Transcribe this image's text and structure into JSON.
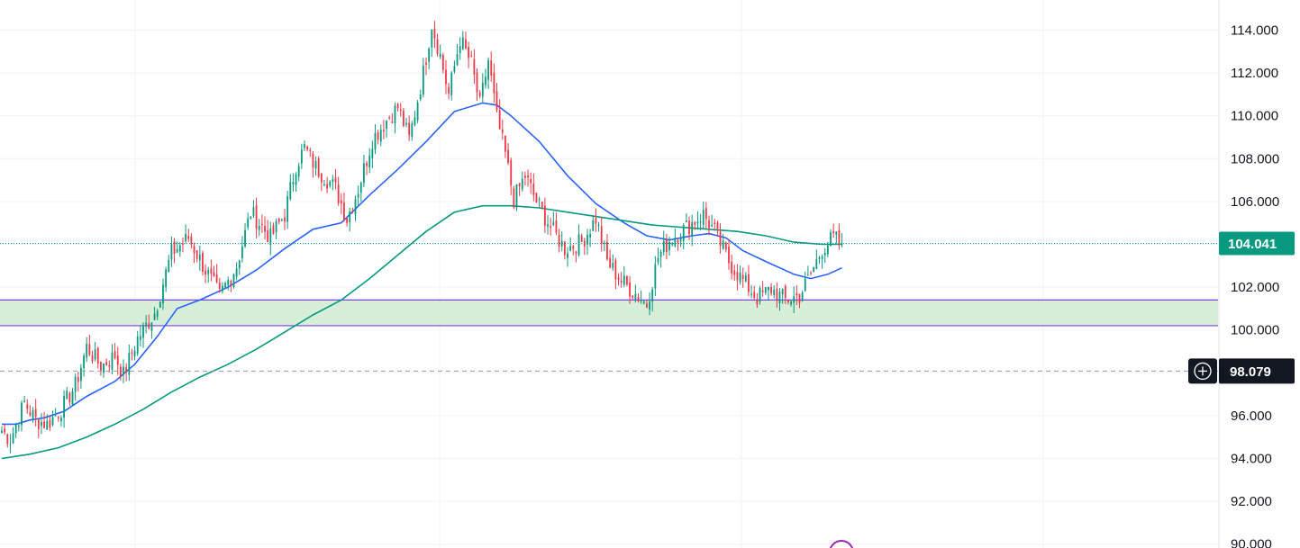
{
  "chart_data": {
    "type": "candlestick",
    "title": "",
    "xlabel": "",
    "ylabel": "",
    "ylim": [
      89.8,
      115.5
    ],
    "grid": true,
    "y_ticks": [
      {
        "value": 114,
        "label": "114.000"
      },
      {
        "value": 112,
        "label": "112.000"
      },
      {
        "value": 110,
        "label": "110.000"
      },
      {
        "value": 108,
        "label": "108.000"
      },
      {
        "value": 106,
        "label": "106.000"
      },
      {
        "value": 102,
        "label": "102.000"
      },
      {
        "value": 100,
        "label": "100.000"
      },
      {
        "value": 96,
        "label": "96.000"
      },
      {
        "value": 94,
        "label": "94.000"
      },
      {
        "value": 92,
        "label": "92.000"
      },
      {
        "value": 90,
        "label": "90.000"
      }
    ],
    "price_anchors": [
      {
        "t": 0,
        "p": 95.3
      },
      {
        "t": 3,
        "p": 94.9
      },
      {
        "t": 8,
        "p": 96.6
      },
      {
        "t": 12,
        "p": 95.8
      },
      {
        "t": 16,
        "p": 95.6
      },
      {
        "t": 21,
        "p": 96.3
      },
      {
        "t": 26,
        "p": 97.4
      },
      {
        "t": 30,
        "p": 99.2
      },
      {
        "t": 35,
        "p": 98.3
      },
      {
        "t": 40,
        "p": 98.8
      },
      {
        "t": 43,
        "p": 97.9
      },
      {
        "t": 48,
        "p": 99.6
      },
      {
        "t": 54,
        "p": 100.8
      },
      {
        "t": 60,
        "p": 103.6
      },
      {
        "t": 66,
        "p": 104.3
      },
      {
        "t": 72,
        "p": 102.8
      },
      {
        "t": 77,
        "p": 101.6
      },
      {
        "t": 83,
        "p": 103.0
      },
      {
        "t": 88,
        "p": 105.5
      },
      {
        "t": 95,
        "p": 104.3
      },
      {
        "t": 100,
        "p": 105.4
      },
      {
        "t": 104,
        "p": 107.7
      },
      {
        "t": 107,
        "p": 108.5
      },
      {
        "t": 111,
        "p": 107.6
      },
      {
        "t": 118,
        "p": 106.6
      },
      {
        "t": 122,
        "p": 105.2
      },
      {
        "t": 126,
        "p": 106.6
      },
      {
        "t": 131,
        "p": 108.9
      },
      {
        "t": 136,
        "p": 109.8
      },
      {
        "t": 140,
        "p": 110.4
      },
      {
        "t": 144,
        "p": 108.9
      },
      {
        "t": 149,
        "p": 112.0
      },
      {
        "t": 152,
        "p": 114.3
      },
      {
        "t": 155,
        "p": 112.8
      },
      {
        "t": 158,
        "p": 111.0
      },
      {
        "t": 162,
        "p": 113.6
      },
      {
        "t": 166,
        "p": 112.4
      },
      {
        "t": 169,
        "p": 110.5
      },
      {
        "t": 172,
        "p": 112.6
      },
      {
        "t": 175,
        "p": 109.9
      },
      {
        "t": 178,
        "p": 108.2
      },
      {
        "t": 181,
        "p": 106.1
      },
      {
        "t": 185,
        "p": 107.2
      },
      {
        "t": 189,
        "p": 106.0
      },
      {
        "t": 194,
        "p": 104.8
      },
      {
        "t": 199,
        "p": 103.8
      },
      {
        "t": 205,
        "p": 104.1
      },
      {
        "t": 210,
        "p": 105.2
      },
      {
        "t": 214,
        "p": 103.2
      },
      {
        "t": 219,
        "p": 102.3
      },
      {
        "t": 224,
        "p": 101.7
      },
      {
        "t": 228,
        "p": 101.2
      },
      {
        "t": 232,
        "p": 103.4
      },
      {
        "t": 236,
        "p": 104.2
      },
      {
        "t": 240,
        "p": 104.6
      },
      {
        "t": 244,
        "p": 105.0
      },
      {
        "t": 248,
        "p": 105.4
      },
      {
        "t": 252,
        "p": 104.6
      },
      {
        "t": 257,
        "p": 103.2
      },
      {
        "t": 262,
        "p": 102.3
      },
      {
        "t": 267,
        "p": 101.5
      },
      {
        "t": 272,
        "p": 101.9
      },
      {
        "t": 277,
        "p": 101.4
      },
      {
        "t": 282,
        "p": 101.6
      },
      {
        "t": 286,
        "p": 102.6
      },
      {
        "t": 290,
        "p": 103.8
      },
      {
        "t": 294,
        "p": 104.3
      },
      {
        "t": 297,
        "p": 104.041
      }
    ],
    "series": [
      {
        "color": "#2962ff",
        "points": [
          [
            0,
            95.6
          ],
          [
            5,
            95.6
          ],
          [
            10,
            95.8
          ],
          [
            15,
            95.9
          ],
          [
            22,
            96.2
          ],
          [
            30,
            96.9
          ],
          [
            40,
            97.6
          ],
          [
            47,
            98.4
          ],
          [
            55,
            99.7
          ],
          [
            62,
            101.0
          ],
          [
            70,
            101.4
          ],
          [
            80,
            102.0
          ],
          [
            90,
            102.8
          ],
          [
            100,
            103.8
          ],
          [
            110,
            104.7
          ],
          [
            120,
            105.0
          ],
          [
            130,
            106.3
          ],
          [
            140,
            107.5
          ],
          [
            150,
            108.8
          ],
          [
            160,
            110.2
          ],
          [
            170,
            110.6
          ],
          [
            175,
            110.5
          ],
          [
            180,
            110.0
          ],
          [
            190,
            108.8
          ],
          [
            200,
            107.2
          ],
          [
            210,
            105.9
          ],
          [
            220,
            105.0
          ],
          [
            228,
            104.4
          ],
          [
            236,
            104.2
          ],
          [
            244,
            104.4
          ],
          [
            250,
            104.5
          ],
          [
            256,
            104.3
          ],
          [
            262,
            103.7
          ],
          [
            270,
            103.2
          ],
          [
            280,
            102.6
          ],
          [
            286,
            102.4
          ],
          [
            292,
            102.6
          ],
          [
            297,
            102.9
          ]
        ]
      },
      {
        "color": "#089981",
        "points": [
          [
            0,
            94.0
          ],
          [
            10,
            94.2
          ],
          [
            20,
            94.5
          ],
          [
            30,
            95.0
          ],
          [
            40,
            95.6
          ],
          [
            50,
            96.3
          ],
          [
            60,
            97.1
          ],
          [
            70,
            97.8
          ],
          [
            80,
            98.4
          ],
          [
            90,
            99.1
          ],
          [
            100,
            99.9
          ],
          [
            110,
            100.7
          ],
          [
            120,
            101.4
          ],
          [
            130,
            102.4
          ],
          [
            140,
            103.5
          ],
          [
            150,
            104.6
          ],
          [
            160,
            105.5
          ],
          [
            170,
            105.8
          ],
          [
            180,
            105.8
          ],
          [
            190,
            105.7
          ],
          [
            200,
            105.5
          ],
          [
            210,
            105.3
          ],
          [
            220,
            105.1
          ],
          [
            230,
            104.9
          ],
          [
            240,
            104.8
          ],
          [
            250,
            104.7
          ],
          [
            260,
            104.6
          ],
          [
            270,
            104.4
          ],
          [
            280,
            104.1
          ],
          [
            290,
            104.0
          ],
          [
            297,
            104.0
          ]
        ]
      }
    ],
    "support_zone": {
      "low": 100.2,
      "high": 101.4,
      "color": "#d7eed8",
      "line_color": "#7b3fe4"
    },
    "last_price": {
      "label": "104.041",
      "value": 104.041,
      "color": "#089981"
    },
    "crosshair": {
      "label": "98.079",
      "value": 98.079
    },
    "candle_colors": {
      "up": "#089981",
      "down": "#f23645"
    }
  }
}
